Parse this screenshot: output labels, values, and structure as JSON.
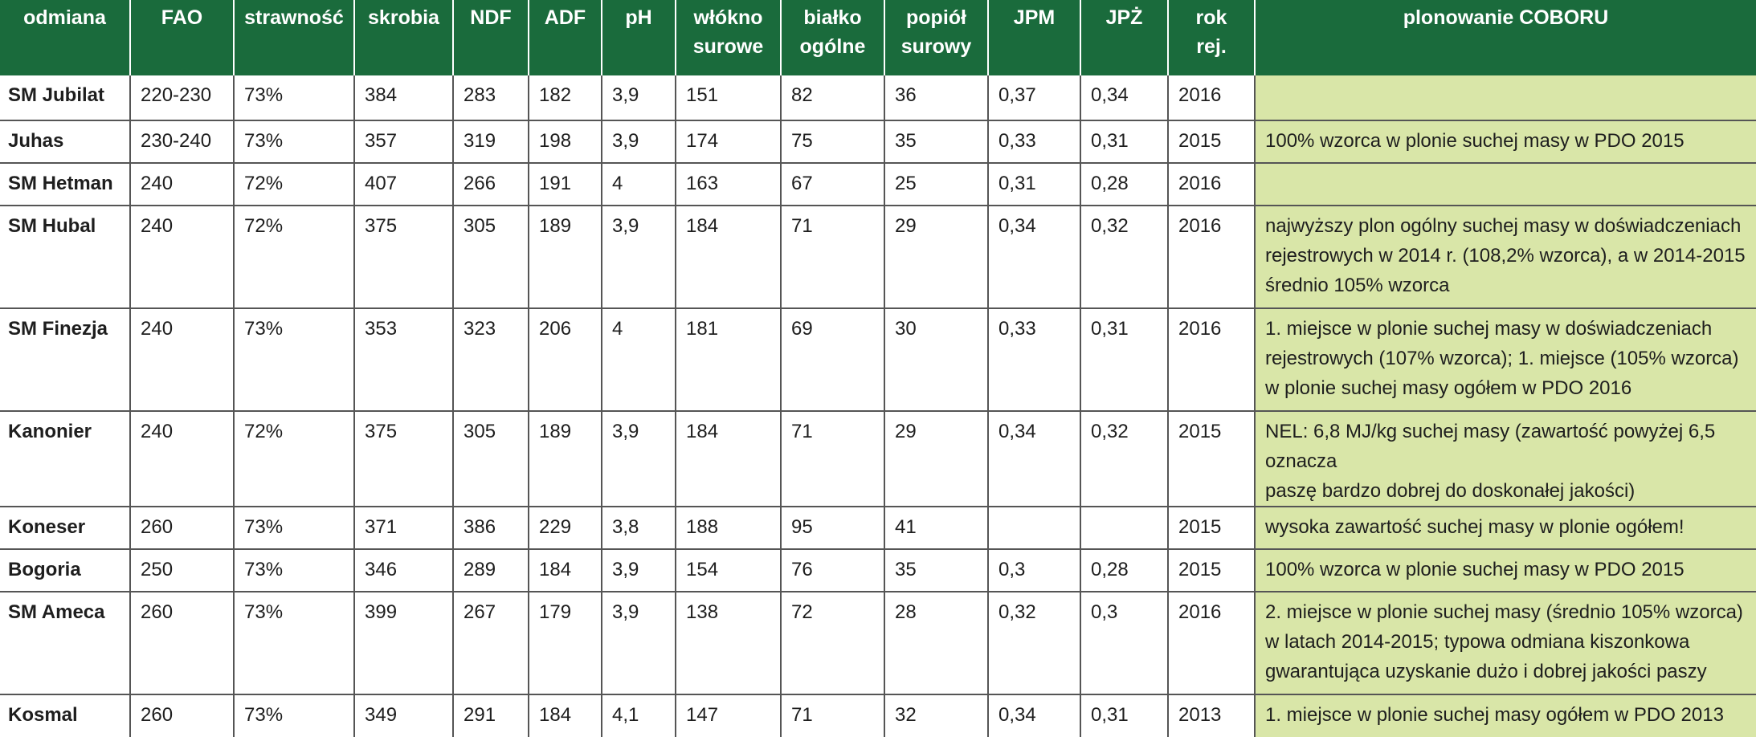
{
  "headers": [
    {
      "key": "odmiana",
      "lines": [
        "odmiana"
      ]
    },
    {
      "key": "fao",
      "lines": [
        "FAO"
      ]
    },
    {
      "key": "strawnosc",
      "lines": [
        "strawność"
      ]
    },
    {
      "key": "skrobia",
      "lines": [
        "skrobia"
      ]
    },
    {
      "key": "ndf",
      "lines": [
        "NDF"
      ]
    },
    {
      "key": "adf",
      "lines": [
        "ADF"
      ]
    },
    {
      "key": "ph",
      "lines": [
        "pH"
      ]
    },
    {
      "key": "wlokno",
      "lines": [
        "włókno",
        "surowe"
      ]
    },
    {
      "key": "bialko",
      "lines": [
        "białko",
        "ogólne"
      ]
    },
    {
      "key": "popiol",
      "lines": [
        "popiół",
        "surowy"
      ]
    },
    {
      "key": "jpm",
      "lines": [
        "JPM"
      ]
    },
    {
      "key": "jpz",
      "lines": [
        "JPŻ"
      ]
    },
    {
      "key": "rok",
      "lines": [
        "rok",
        "rej."
      ]
    },
    {
      "key": "plonowanie",
      "lines": [
        "plonowanie COBORU"
      ]
    }
  ],
  "rows": [
    {
      "cells": [
        "SM Jubilat",
        "220-230",
        "73%",
        "384",
        "283",
        "182",
        "3,9",
        "151",
        "82",
        "36",
        "0,37",
        "0,34",
        "2016"
      ],
      "note": []
    },
    {
      "cells": [
        "Juhas",
        "230-240",
        "73%",
        "357",
        "319",
        "198",
        "3,9",
        "174",
        "75",
        "35",
        "0,33",
        "0,31",
        "2015"
      ],
      "note": [
        "100% wzorca w plonie suchej masy w PDO 2015"
      ]
    },
    {
      "cells": [
        "SM Hetman",
        "240",
        "72%",
        "407",
        "266",
        "191",
        "4",
        "163",
        "67",
        "25",
        "0,31",
        "0,28",
        "2016"
      ],
      "note": []
    },
    {
      "cells": [
        "SM Hubal",
        "240",
        "72%",
        "375",
        "305",
        "189",
        "3,9",
        "184",
        "71",
        "29",
        "0,34",
        "0,32",
        "2016"
      ],
      "note": [
        "najwyższy plon ogólny suchej masy w doświadczeniach",
        "rejestrowych w 2014 r. (108,2% wzorca), a w 2014-2015",
        "średnio 105% wzorca"
      ]
    },
    {
      "cells": [
        "SM Finezja",
        "240",
        "73%",
        "353",
        "323",
        "206",
        "4",
        "181",
        "69",
        "30",
        "0,33",
        "0,31",
        "2016"
      ],
      "note": [
        "1. miejsce w plonie suchej masy w doświadczeniach",
        "rejestrowych (107% wzorca); 1. miejsce (105% wzorca)",
        "w plonie suchej masy ogółem w PDO 2016"
      ]
    },
    {
      "cells": [
        "Kanonier",
        "240",
        "72%",
        "375",
        "305",
        "189",
        "3,9",
        "184",
        "71",
        "29",
        "0,34",
        "0,32",
        "2015"
      ],
      "note": [
        "NEL: 6,8 MJ/kg suchej masy (zawartość powyżej 6,5 oznacza",
        "paszę bardzo dobrej do doskonałej jakości)"
      ]
    },
    {
      "cells": [
        "Koneser",
        "260",
        "73%",
        "371",
        "386",
        "229",
        "3,8",
        "188",
        "95",
        "41",
        "",
        "",
        "2015"
      ],
      "note": [
        "wysoka zawartość suchej masy w plonie ogółem!"
      ]
    },
    {
      "cells": [
        "Bogoria",
        "250",
        "73%",
        "346",
        "289",
        "184",
        "3,9",
        "154",
        "76",
        "35",
        "0,3",
        "0,28",
        "2015"
      ],
      "note": [
        "100% wzorca w plonie suchej masy w PDO 2015"
      ]
    },
    {
      "cells": [
        "SM Ameca",
        "260",
        "73%",
        "399",
        "267",
        "179",
        "3,9",
        "138",
        "72",
        "28",
        "0,32",
        "0,3",
        "2016"
      ],
      "note": [
        "2. miejsce w plonie suchej masy (średnio 105% wzorca)",
        "w latach 2014-2015; typowa odmiana kiszonkowa",
        "gwarantująca uzyskanie dużo i dobrej jakości paszy"
      ]
    },
    {
      "cells": [
        "Kosmal",
        "260",
        "73%",
        "349",
        "291",
        "184",
        "4,1",
        "147",
        "71",
        "32",
        "0,34",
        "0,31",
        "2013"
      ],
      "note": [
        "1. miejsce w plonie suchej masy ogółem w PDO 2013"
      ]
    }
  ],
  "colors": {
    "header_bg": "#1a6b3c",
    "header_text": "#ffffff",
    "note_bg": "#d9e6a8",
    "grid": "#555555"
  }
}
